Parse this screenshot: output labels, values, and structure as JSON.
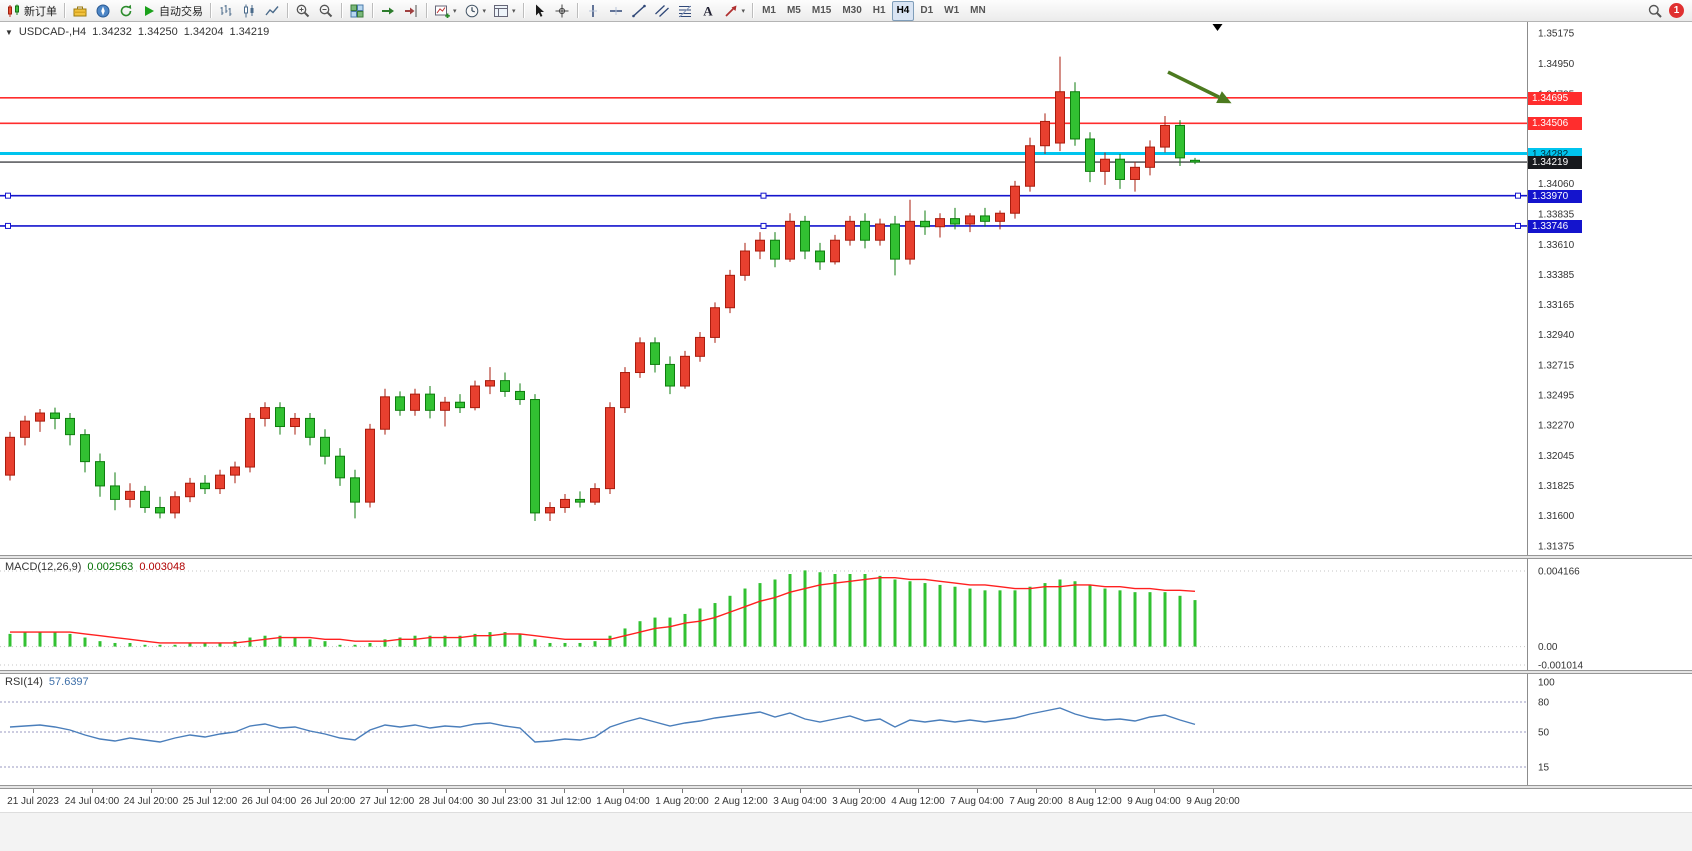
{
  "toolbar": {
    "new_order": "新订单",
    "autotrading": "自动交易",
    "timeframes": [
      "M1",
      "M5",
      "M15",
      "M30",
      "H1",
      "H4",
      "D1",
      "W1",
      "MN"
    ],
    "active_timeframe": "H4",
    "notification_count": "1",
    "items": [
      {
        "name": "new-order-button",
        "icon": "new-order-icon",
        "label_key": "new_order"
      },
      {
        "name": "separator"
      },
      {
        "name": "toolbox-button",
        "icon": "toolbox-icon"
      },
      {
        "name": "navigator-button",
        "icon": "navigator-icon"
      },
      {
        "name": "refresh-button",
        "icon": "refresh-icon"
      },
      {
        "name": "autotrading-button",
        "icon": "autotrading-icon",
        "label_key": "autotrading"
      },
      {
        "name": "separator"
      },
      {
        "name": "bar-chart-button",
        "icon": "bar-chart-icon"
      },
      {
        "name": "candlestick-button",
        "icon": "candlestick-icon"
      },
      {
        "name": "line-chart-button",
        "icon": "line-chart-icon"
      },
      {
        "name": "separator"
      },
      {
        "name": "zoom-in-button",
        "icon": "zoom-in-icon"
      },
      {
        "name": "zoom-out-button",
        "icon": "zoom-out-icon"
      },
      {
        "name": "separator"
      },
      {
        "name": "tile-windows-button",
        "icon": "tile-windows-icon"
      },
      {
        "name": "separator"
      },
      {
        "name": "auto-scroll-button",
        "icon": "auto-scroll-icon"
      },
      {
        "name": "chart-shift-button",
        "icon": "chart-shift-icon"
      },
      {
        "name": "separator"
      },
      {
        "name": "new-chart-button",
        "icon": "new-chart-icon",
        "caret": true
      },
      {
        "name": "periods-button",
        "icon": "periods-icon",
        "caret": true
      },
      {
        "name": "templates-button",
        "icon": "templates-icon",
        "caret": true
      },
      {
        "name": "separator"
      },
      {
        "name": "cursor-button",
        "icon": "cursor-icon"
      },
      {
        "name": "crosshair-button",
        "icon": "crosshair-icon"
      },
      {
        "name": "separator"
      },
      {
        "name": "vertical-line-button",
        "icon": "vertical-line-icon"
      },
      {
        "name": "horizontal-line-button",
        "icon": "horizontal-line-icon"
      },
      {
        "name": "trendline-button",
        "icon": "trendline-icon"
      },
      {
        "name": "channel-button",
        "icon": "channel-icon"
      },
      {
        "name": "fibonacci-button",
        "icon": "fibonacci-icon"
      },
      {
        "name": "text-button",
        "icon": "text-icon"
      },
      {
        "name": "arrow-button",
        "icon": "arrow-icon",
        "caret": true
      },
      {
        "name": "separator"
      }
    ]
  },
  "chart": {
    "symbol_period": "USDCAD-,H4",
    "open": "1.34232",
    "high": "1.34250",
    "low": "1.34204",
    "close": "1.34219"
  },
  "indicators": {
    "macd": {
      "name": "MACD(12,26,9)",
      "value_main": "0.002563",
      "value_signal": "0.003048"
    },
    "rsi": {
      "name": "RSI(14)",
      "value": "57.6397"
    }
  },
  "chart_data": [
    {
      "type": "candlestick",
      "title": "USDCAD-,H4",
      "ylim": [
        1.31375,
        1.35175
      ],
      "up_color": "#e8402f",
      "up_edge": "#a81d0e",
      "down_color": "#32c132",
      "down_edge": "#0f7c0f",
      "y_ticks": [
        "1.35175",
        "1.34950",
        "1.34725",
        "1.34500",
        "1.34275",
        "1.34060",
        "1.33835",
        "1.33610",
        "1.33385",
        "1.33165",
        "1.32940",
        "1.32715",
        "1.32495",
        "1.32270",
        "1.32045",
        "1.31825",
        "1.31600",
        "1.31375"
      ],
      "x_labels": [
        "21 Jul 2023",
        "24 Jul 04:00",
        "24 Jul 20:00",
        "25 Jul 12:00",
        "26 Jul 04:00",
        "26 Jul 20:00",
        "27 Jul 12:00",
        "28 Jul 04:00",
        "30 Jul 23:00",
        "31 Jul 12:00",
        "1 Aug 04:00",
        "1 Aug 20:00",
        "2 Aug 12:00",
        "3 Aug 04:00",
        "3 Aug 20:00",
        "4 Aug 12:00",
        "7 Aug 04:00",
        "7 Aug 20:00",
        "8 Aug 12:00",
        "9 Aug 04:00",
        "9 Aug 20:00"
      ],
      "hlines": [
        {
          "name": "resistance-line-1",
          "price": 1.34695,
          "label": "1.34695",
          "color": "#ff2d2d",
          "width": 1.6
        },
        {
          "name": "resistance-line-2",
          "price": 1.34506,
          "label": "1.34506",
          "color": "#ff2d2d",
          "width": 1.6
        },
        {
          "name": "alert-line",
          "price": 1.34282,
          "label": "1.34282",
          "color": "#00c4ee",
          "width": 3,
          "label_color": "#00303c"
        },
        {
          "name": "current-price-line",
          "price": 1.34219,
          "label": "1.34219",
          "color": "#17191d",
          "width": 1.2
        },
        {
          "name": "support-line-1",
          "price": 1.3397,
          "label": "1.33970",
          "color": "#1414cd",
          "width": 1.6,
          "selected": true
        },
        {
          "name": "support-line-2",
          "price": 1.33746,
          "label": "1.33746",
          "color": "#1414cd",
          "width": 1.6,
          "selected": true
        }
      ],
      "annotation_arrow": {
        "from": [
          77.2,
          1.34886
        ],
        "to": [
          80.6,
          1.347
        ],
        "color": "#4c7a1f"
      },
      "shift_marker": 80.5,
      "ohlc": [
        [
          1.319,
          1.3222,
          1.3186,
          1.3218
        ],
        [
          1.3218,
          1.3234,
          1.3212,
          1.323
        ],
        [
          1.323,
          1.3239,
          1.3222,
          1.3236
        ],
        [
          1.3236,
          1.324,
          1.3224,
          1.3232
        ],
        [
          1.3232,
          1.3236,
          1.3212,
          1.322
        ],
        [
          1.322,
          1.3224,
          1.3192,
          1.32
        ],
        [
          1.32,
          1.3206,
          1.3174,
          1.3182
        ],
        [
          1.3182,
          1.3192,
          1.3164,
          1.3172
        ],
        [
          1.3172,
          1.3184,
          1.3166,
          1.3178
        ],
        [
          1.3178,
          1.3182,
          1.3162,
          1.3166
        ],
        [
          1.3166,
          1.3174,
          1.3158,
          1.3162
        ],
        [
          1.3162,
          1.3178,
          1.3158,
          1.3174
        ],
        [
          1.3174,
          1.3188,
          1.317,
          1.3184
        ],
        [
          1.3184,
          1.319,
          1.3176,
          1.318
        ],
        [
          1.318,
          1.3194,
          1.3176,
          1.319
        ],
        [
          1.319,
          1.32,
          1.3184,
          1.3196
        ],
        [
          1.3196,
          1.3236,
          1.3192,
          1.3232
        ],
        [
          1.3232,
          1.3244,
          1.3226,
          1.324
        ],
        [
          1.324,
          1.3244,
          1.322,
          1.3226
        ],
        [
          1.3226,
          1.3236,
          1.322,
          1.3232
        ],
        [
          1.3232,
          1.3236,
          1.3212,
          1.3218
        ],
        [
          1.3218,
          1.3224,
          1.3198,
          1.3204
        ],
        [
          1.3204,
          1.321,
          1.3182,
          1.3188
        ],
        [
          1.3188,
          1.3194,
          1.3158,
          1.317
        ],
        [
          1.317,
          1.3228,
          1.3166,
          1.3224
        ],
        [
          1.3224,
          1.3254,
          1.322,
          1.3248
        ],
        [
          1.3248,
          1.3252,
          1.3234,
          1.3238
        ],
        [
          1.3238,
          1.3254,
          1.3234,
          1.325
        ],
        [
          1.325,
          1.3256,
          1.3232,
          1.3238
        ],
        [
          1.3238,
          1.3248,
          1.3226,
          1.3244
        ],
        [
          1.3244,
          1.325,
          1.3236,
          1.324
        ],
        [
          1.324,
          1.326,
          1.3238,
          1.3256
        ],
        [
          1.3256,
          1.327,
          1.325,
          1.326
        ],
        [
          1.326,
          1.3266,
          1.3248,
          1.3252
        ],
        [
          1.3252,
          1.3258,
          1.3242,
          1.3246
        ],
        [
          1.3246,
          1.325,
          1.3156,
          1.3162
        ],
        [
          1.3162,
          1.317,
          1.3156,
          1.3166
        ],
        [
          1.3166,
          1.3176,
          1.3162,
          1.3172
        ],
        [
          1.3172,
          1.3178,
          1.3166,
          1.317
        ],
        [
          1.317,
          1.3184,
          1.3168,
          1.318
        ],
        [
          1.318,
          1.3244,
          1.3176,
          1.324
        ],
        [
          1.324,
          1.327,
          1.3236,
          1.3266
        ],
        [
          1.3266,
          1.3292,
          1.3262,
          1.3288
        ],
        [
          1.3288,
          1.3292,
          1.3266,
          1.3272
        ],
        [
          1.3272,
          1.3278,
          1.325,
          1.3256
        ],
        [
          1.3256,
          1.3282,
          1.3254,
          1.3278
        ],
        [
          1.3278,
          1.3296,
          1.3274,
          1.3292
        ],
        [
          1.3292,
          1.3318,
          1.3288,
          1.3314
        ],
        [
          1.3314,
          1.3342,
          1.331,
          1.3338
        ],
        [
          1.3338,
          1.3362,
          1.3334,
          1.3356
        ],
        [
          1.3356,
          1.337,
          1.335,
          1.3364
        ],
        [
          1.3364,
          1.337,
          1.3344,
          1.335
        ],
        [
          1.335,
          1.3384,
          1.3348,
          1.3378
        ],
        [
          1.3378,
          1.3382,
          1.335,
          1.3356
        ],
        [
          1.3356,
          1.3362,
          1.3342,
          1.3348
        ],
        [
          1.3348,
          1.3368,
          1.3346,
          1.3364
        ],
        [
          1.3364,
          1.3382,
          1.336,
          1.3378
        ],
        [
          1.3378,
          1.3384,
          1.3358,
          1.3364
        ],
        [
          1.3364,
          1.338,
          1.336,
          1.3376
        ],
        [
          1.3376,
          1.3382,
          1.3338,
          1.335
        ],
        [
          1.335,
          1.3394,
          1.3346,
          1.3378
        ],
        [
          1.3378,
          1.3386,
          1.3368,
          1.3374
        ],
        [
          1.3374,
          1.3384,
          1.3366,
          1.338
        ],
        [
          1.338,
          1.3388,
          1.3372,
          1.3376
        ],
        [
          1.3376,
          1.3384,
          1.337,
          1.3382
        ],
        [
          1.3382,
          1.3388,
          1.3374,
          1.3378
        ],
        [
          1.3378,
          1.3386,
          1.3372,
          1.3384
        ],
        [
          1.3384,
          1.3408,
          1.338,
          1.3404
        ],
        [
          1.3404,
          1.344,
          1.34,
          1.3434
        ],
        [
          1.3434,
          1.3458,
          1.3428,
          1.3452
        ],
        [
          1.3436,
          1.35,
          1.343,
          1.3474
        ],
        [
          1.3474,
          1.3481,
          1.3434,
          1.3439
        ],
        [
          1.3439,
          1.3444,
          1.3407,
          1.3415
        ],
        [
          1.3415,
          1.3429,
          1.3405,
          1.3424
        ],
        [
          1.3424,
          1.3428,
          1.3402,
          1.3409
        ],
        [
          1.3409,
          1.3422,
          1.34,
          1.3418
        ],
        [
          1.3418,
          1.3438,
          1.3412,
          1.3433
        ],
        [
          1.3433,
          1.3456,
          1.3429,
          1.3449
        ],
        [
          1.3449,
          1.3453,
          1.3419,
          1.3425
        ],
        [
          1.34232,
          1.3425,
          1.34204,
          1.34219
        ]
      ]
    },
    {
      "type": "bar",
      "name": "MACD(12,26,9)",
      "current": "0.002563 0.003048",
      "ylim": [
        -0.001014,
        0.004166
      ],
      "y_ticks": [
        "0.004166",
        "0.00",
        "-0.001014"
      ],
      "histogram_color": "#32c132",
      "signal_color": "#ff2020",
      "values": [
        0.0007,
        0.0008,
        0.0008,
        0.0008,
        0.0007,
        0.0005,
        0.0003,
        0.0002,
        0.0002,
        0.0001,
        0.0001,
        0.0001,
        0.0002,
        0.0002,
        0.0002,
        0.0003,
        0.0005,
        0.0006,
        0.0006,
        0.0005,
        0.0004,
        0.0003,
        0.0001,
        0.0001,
        0.0002,
        0.0004,
        0.0005,
        0.0006,
        0.0006,
        0.0006,
        0.0006,
        0.0007,
        0.0008,
        0.0008,
        0.0007,
        0.0004,
        0.0002,
        0.0002,
        0.0002,
        0.0003,
        0.0006,
        0.001,
        0.0014,
        0.0016,
        0.0016,
        0.0018,
        0.0021,
        0.0024,
        0.0028,
        0.0032,
        0.0035,
        0.0037,
        0.004,
        0.0042,
        0.0041,
        0.004,
        0.004,
        0.004,
        0.0039,
        0.0037,
        0.0036,
        0.0035,
        0.0034,
        0.0033,
        0.0032,
        0.0031,
        0.0031,
        0.0031,
        0.0033,
        0.0035,
        0.0037,
        0.0036,
        0.0034,
        0.0032,
        0.0031,
        0.003,
        0.003,
        0.003,
        0.0028,
        0.002563
      ],
      "signal": [
        0.0008,
        0.0008,
        0.0008,
        0.0008,
        0.0008,
        0.0007,
        0.0006,
        0.0005,
        0.0004,
        0.0003,
        0.0002,
        0.0002,
        0.0002,
        0.0002,
        0.0002,
        0.0002,
        0.0003,
        0.0004,
        0.0005,
        0.0005,
        0.0005,
        0.0004,
        0.0004,
        0.0003,
        0.0003,
        0.0003,
        0.0004,
        0.0004,
        0.0005,
        0.0005,
        0.0005,
        0.0006,
        0.0006,
        0.0007,
        0.0007,
        0.0006,
        0.0005,
        0.0004,
        0.0004,
        0.0004,
        0.0004,
        0.0006,
        0.0008,
        0.001,
        0.0011,
        0.0013,
        0.0014,
        0.0016,
        0.0019,
        0.0022,
        0.0025,
        0.0027,
        0.003,
        0.0032,
        0.0034,
        0.0035,
        0.0036,
        0.0037,
        0.0038,
        0.0038,
        0.0037,
        0.0037,
        0.0036,
        0.0035,
        0.0034,
        0.0034,
        0.0033,
        0.0032,
        0.0032,
        0.0033,
        0.0033,
        0.0034,
        0.0034,
        0.0033,
        0.0033,
        0.0032,
        0.0032,
        0.0031,
        0.0031,
        0.003048
      ]
    },
    {
      "type": "line",
      "name": "RSI(14)",
      "current": "57.6397",
      "ylim": [
        0,
        100
      ],
      "levels": [
        80,
        50,
        15
      ],
      "y_ticks": [
        "100",
        "80",
        "50",
        "15"
      ],
      "line_color": "#4a7ebb",
      "values": [
        55,
        56,
        57,
        55,
        52,
        47,
        43,
        41,
        44,
        42,
        40,
        44,
        47,
        45,
        48,
        50,
        56,
        58,
        54,
        55,
        51,
        48,
        44,
        42,
        52,
        57,
        55,
        57,
        54,
        56,
        55,
        58,
        59,
        56,
        54,
        40,
        41,
        43,
        42,
        45,
        55,
        60,
        64,
        60,
        56,
        59,
        61,
        64,
        66,
        68,
        70,
        65,
        69,
        63,
        60,
        63,
        66,
        61,
        63,
        55,
        62,
        60,
        62,
        60,
        62,
        60,
        62,
        64,
        68,
        71,
        74,
        68,
        64,
        62,
        63,
        61,
        65,
        67,
        62,
        57.64
      ]
    }
  ]
}
